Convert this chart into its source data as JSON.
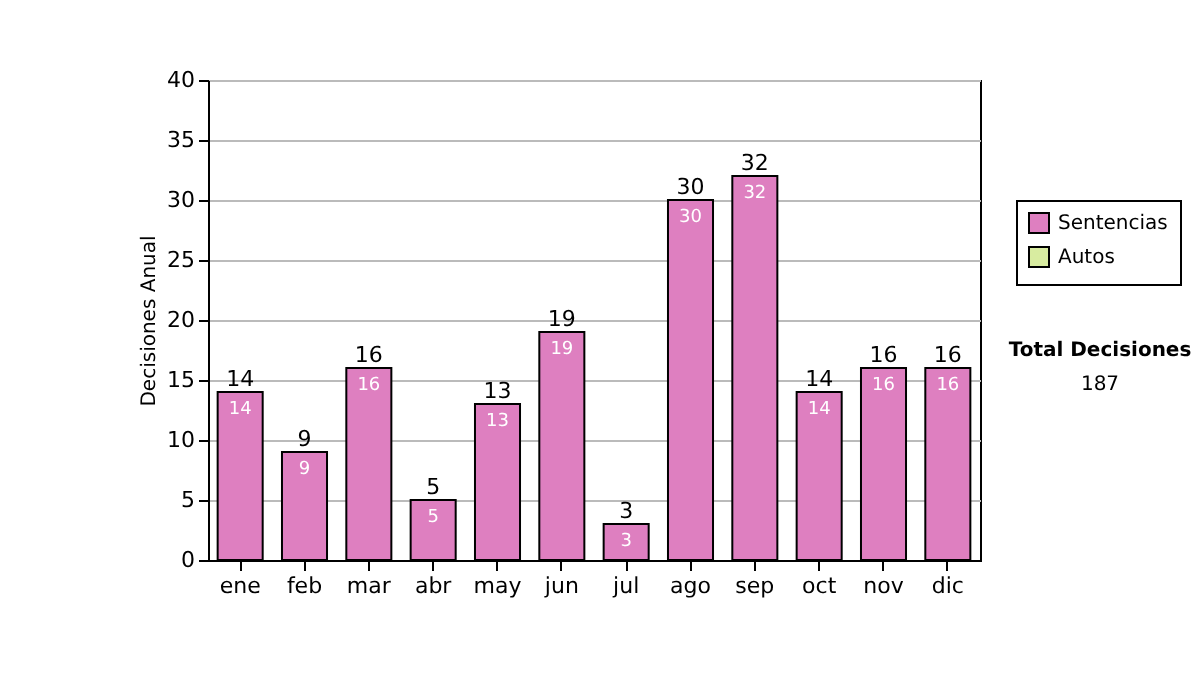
{
  "chart_data": {
    "type": "bar",
    "ylabel": "Decisiones Anual",
    "categories": [
      "ene",
      "feb",
      "mar",
      "abr",
      "may",
      "jun",
      "jul",
      "ago",
      "sep",
      "oct",
      "nov",
      "dic"
    ],
    "series": [
      {
        "name": "Sentencias",
        "color": "#de7fc0",
        "values": [
          14,
          9,
          16,
          5,
          13,
          19,
          3,
          30,
          32,
          14,
          16,
          16
        ],
        "value_labels": [
          "14",
          "9",
          "16",
          "5",
          "13",
          "19",
          "3",
          "30",
          "32",
          "14",
          "16",
          "16"
        ]
      },
      {
        "name": "Autos",
        "color": "#d8eca0",
        "values": [
          null,
          null,
          null,
          null,
          null,
          null,
          null,
          null,
          null,
          null,
          null,
          null
        ]
      }
    ],
    "totals": [
      "14",
      "9",
      "16",
      "5",
      "13",
      "19",
      "3",
      "30",
      "32",
      "14",
      "16",
      "16"
    ],
    "ylim": [
      0,
      40
    ],
    "yticks": [
      0,
      5,
      10,
      15,
      20,
      25,
      30,
      35,
      40
    ],
    "grid": "y",
    "legend": "right",
    "annotations": [
      "Total Decisiones",
      "187"
    ]
  }
}
